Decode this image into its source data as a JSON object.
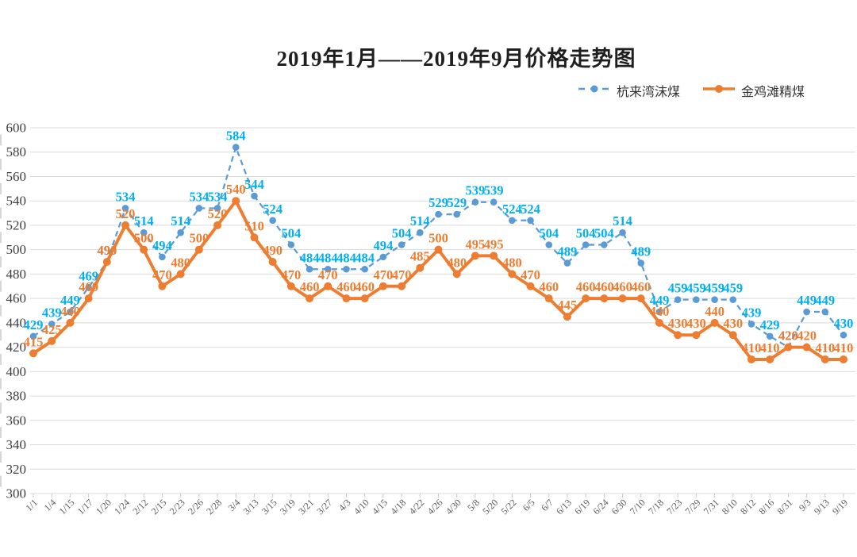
{
  "title": "2019年1月——2019年9月价格走势图",
  "colors": {
    "background": "#FFFFFF",
    "grid": "#D9D9D9",
    "tick": "#C9C9C9",
    "x_axis_text": "#595959",
    "y_axis_text": "#3F3F3F",
    "series_blue": "#5B9BD5",
    "series_blue_label": "#00B0F0",
    "series_orange": "#ED7D31"
  },
  "chart_data": {
    "type": "line",
    "title": "2019年1月——2019年9月价格走势图",
    "xlabel": "",
    "ylabel": "",
    "ylim": [
      300,
      600
    ],
    "ytick_step": 20,
    "grid": "horizontal",
    "legend_position": "top-right",
    "categories": [
      "1/1",
      "1/4",
      "1/15",
      "1/17",
      "1/20",
      "1/24",
      "2/12",
      "2/15",
      "2/23",
      "2/26",
      "2/28",
      "3/4",
      "3/13",
      "3/15",
      "3/19",
      "3/21",
      "3/27",
      "4/3",
      "4/10",
      "4/15",
      "4/18",
      "4/22",
      "4/26",
      "4/30",
      "5/8",
      "5/20",
      "5/22",
      "6/5",
      "6/7",
      "6/13",
      "6/19",
      "6/24",
      "6/30",
      "7/10",
      "7/18",
      "7/23",
      "7/29",
      "7/31",
      "8/10",
      "8/12",
      "8/16",
      "8/31",
      "9/3",
      "9/13",
      "9/19"
    ],
    "series": [
      {
        "name": "杭来湾沫煤",
        "line_color": "#5B9BD5",
        "label_color": "#00B0F0",
        "dashed": true,
        "values": [
          429,
          439,
          449,
          469,
          490,
          534,
          514,
          494,
          514,
          534,
          534,
          584,
          544,
          524,
          504,
          484,
          484,
          484,
          484,
          494,
          504,
          514,
          529,
          529,
          539,
          539,
          524,
          524,
          504,
          489,
          504,
          504,
          514,
          489,
          449,
          459,
          459,
          459,
          459,
          439,
          429,
          420,
          449,
          449,
          430
        ]
      },
      {
        "name": "金鸡滩精煤",
        "line_color": "#ED7D31",
        "label_color": "#ED7D31",
        "dashed": false,
        "values": [
          415,
          425,
          440,
          460,
          490,
          520,
          500,
          470,
          480,
          500,
          520,
          540,
          510,
          490,
          470,
          460,
          470,
          460,
          460,
          470,
          470,
          485,
          500,
          480,
          495,
          495,
          480,
          470,
          460,
          445,
          460,
          460,
          460,
          460,
          440,
          430,
          430,
          440,
          430,
          410,
          410,
          420,
          420,
          410,
          410
        ]
      }
    ]
  }
}
